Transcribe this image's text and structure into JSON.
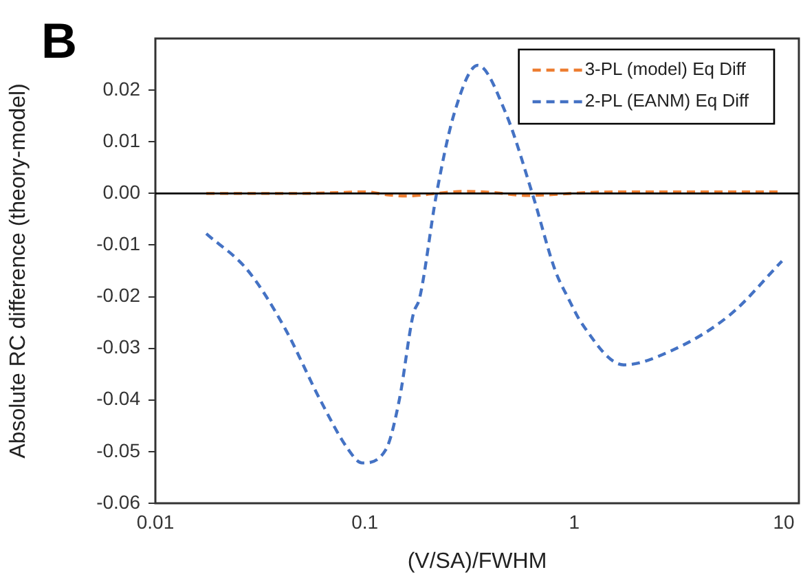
{
  "chart_data": {
    "type": "line",
    "title": "B",
    "xlabel": "(V/SA)/FWHM",
    "ylabel": "Absolute RC difference (theory-model)",
    "log": "x",
    "xlim": [
      0.01,
      11.8
    ],
    "xticks": [
      0.01,
      0.1,
      1,
      10
    ],
    "ylim": [
      -0.06,
      0.03
    ],
    "yticks": [
      -0.06,
      -0.05,
      -0.04,
      -0.03,
      -0.02,
      -0.01,
      {
        "value": 0,
        "label": "0.00"
      },
      0.01,
      0.02
    ],
    "grid": false,
    "legend": "top right",
    "marker": "none",
    "line_style": "dashed",
    "ref_lines": [
      {
        "axis": "y",
        "value": 0,
        "color": "#000000"
      }
    ],
    "series": [
      {
        "name": "3-PL (model) Eq Diff",
        "color": "#ed7d31",
        "x": [
          0.0175,
          0.03,
          0.05,
          0.08,
          0.1,
          0.13,
          0.16,
          0.22,
          0.3,
          0.4,
          0.6,
          0.8,
          1.2,
          2,
          4,
          9.8
        ],
        "values": [
          0,
          0,
          0,
          0.0002,
          0.0003,
          -0.0003,
          -0.0005,
          0,
          0.0004,
          0.0002,
          -0.0004,
          -0.0002,
          0.0002,
          0.0003,
          0.0003,
          0.0003
        ]
      },
      {
        "name": "2-PL (EANM) Eq Diff",
        "color": "#4472c4",
        "x": [
          0.0175,
          0.0276,
          0.0415,
          0.0616,
          0.0834,
          0.097,
          0.126,
          0.146,
          0.17,
          0.183,
          0.22,
          0.268,
          0.346,
          0.469,
          0.63,
          0.81,
          0.93,
          1.09,
          1.72,
          2.89,
          5.54,
          9.8
        ],
        "values": [
          -0.0078,
          -0.0149,
          -0.0261,
          -0.0402,
          -0.0496,
          -0.0522,
          -0.0496,
          -0.04,
          -0.0235,
          -0.0201,
          0,
          0.0157,
          0.0248,
          0.0157,
          0,
          -0.0149,
          -0.0201,
          -0.0253,
          -0.0332,
          -0.0305,
          -0.0235,
          -0.0131
        ]
      }
    ]
  }
}
